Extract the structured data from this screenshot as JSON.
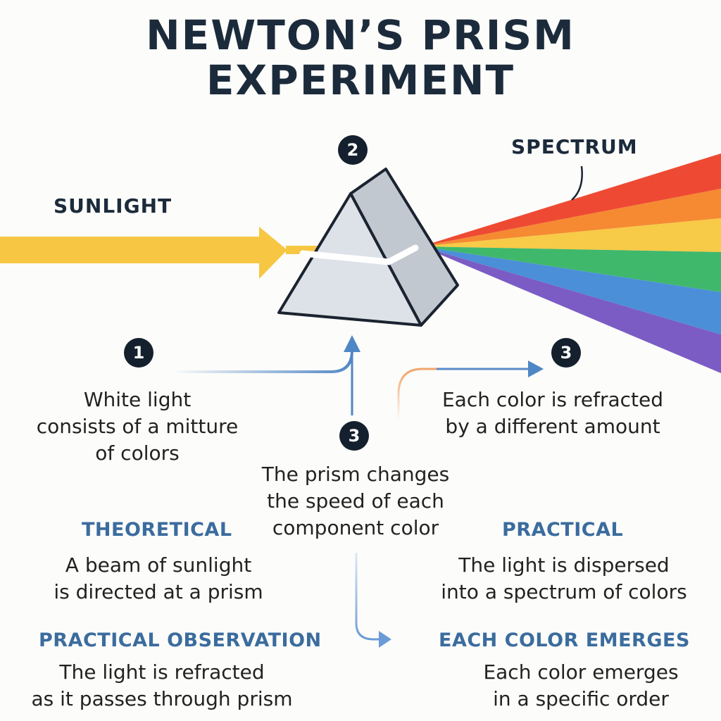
{
  "title": {
    "line1": "NEWTON’S PRISM",
    "line2": "EXPERIMENT"
  },
  "labels": {
    "sunlight": "SUNLIGHT",
    "spectrum": "SPECTRUM"
  },
  "steps": {
    "step1": {
      "number": "1",
      "text": [
        "White light",
        "consists of a mitture",
        "of colors"
      ]
    },
    "step2": {
      "number": "2"
    },
    "step3_center": {
      "number": "3",
      "text": [
        "The prism changes",
        "the speed of each",
        "component color"
      ]
    },
    "step3_right": {
      "number": "3",
      "text": [
        "Each color is refracted",
        "by a different amount"
      ]
    }
  },
  "sections": {
    "theoretical": {
      "heading": "THEORETICAL",
      "text": [
        "A beam of sunlight",
        "is directed at a prism"
      ]
    },
    "practical": {
      "heading": "PRACTICAL",
      "text": [
        "The light is dispersed",
        "into a spectrum of colors"
      ]
    },
    "practical_observation": {
      "heading": "PRACTICAL OBSERVATION",
      "text": [
        "The light is refracted",
        "as it passes through prism"
      ]
    },
    "each_color_emerges": {
      "heading": "EACH COLOR EMERGES",
      "text": [
        "Each color emerges",
        "in a specific order"
      ]
    }
  },
  "colors": {
    "sunlight": "#f7c744",
    "spectrum": [
      "#ee4a33",
      "#f58a32",
      "#f7ca47",
      "#3fb86c",
      "#4b8fd8",
      "#7b5cc4"
    ],
    "heading": "#3b6c9e",
    "badge": "#14202d"
  }
}
